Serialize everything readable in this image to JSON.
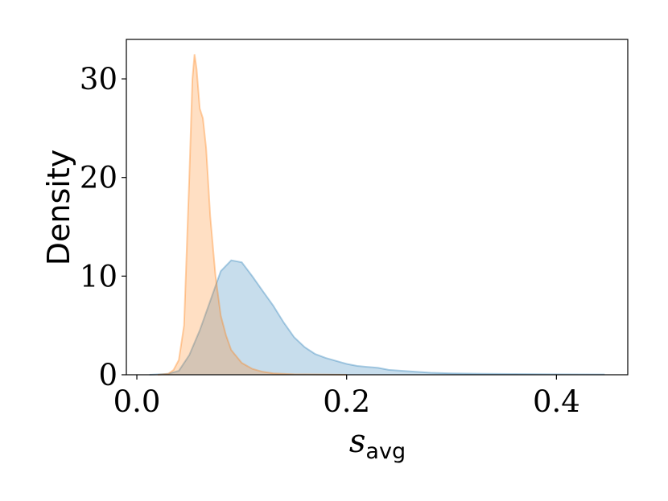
{
  "chart_data": {
    "type": "area",
    "xlabel": "s",
    "xlabel_subscript": "avg",
    "ylabel": "Density",
    "xlim": [
      -0.01,
      0.468
    ],
    "ylim": [
      0,
      34
    ],
    "grid": false,
    "x_ticks": [
      {
        "value": 0.0,
        "label": "0.0"
      },
      {
        "value": 0.2,
        "label": "0.2"
      },
      {
        "value": 0.4,
        "label": "0.4"
      }
    ],
    "y_ticks": [
      {
        "value": 0,
        "label": "0"
      },
      {
        "value": 10,
        "label": "10"
      },
      {
        "value": 20,
        "label": "20"
      },
      {
        "value": 30,
        "label": "30"
      }
    ],
    "series": [
      {
        "color": "#1f77b4",
        "points": [
          [
            0.012,
            0.0
          ],
          [
            0.03,
            0.1
          ],
          [
            0.04,
            0.4
          ],
          [
            0.05,
            2.0
          ],
          [
            0.06,
            4.5
          ],
          [
            0.07,
            7.5
          ],
          [
            0.08,
            10.5
          ],
          [
            0.09,
            11.6
          ],
          [
            0.1,
            11.4
          ],
          [
            0.11,
            10.0
          ],
          [
            0.12,
            8.5
          ],
          [
            0.13,
            7.0
          ],
          [
            0.14,
            5.3
          ],
          [
            0.15,
            3.8
          ],
          [
            0.16,
            2.8
          ],
          [
            0.17,
            2.1
          ],
          [
            0.18,
            1.7
          ],
          [
            0.19,
            1.4
          ],
          [
            0.2,
            1.1
          ],
          [
            0.21,
            0.9
          ],
          [
            0.22,
            0.8
          ],
          [
            0.23,
            0.7
          ],
          [
            0.24,
            0.5
          ],
          [
            0.26,
            0.35
          ],
          [
            0.28,
            0.2
          ],
          [
            0.3,
            0.15
          ],
          [
            0.33,
            0.1
          ],
          [
            0.36,
            0.08
          ],
          [
            0.4,
            0.05
          ],
          [
            0.446,
            0.03
          ]
        ]
      },
      {
        "color": "#ff7f0e",
        "points": [
          [
            0.02,
            0.0
          ],
          [
            0.03,
            0.1
          ],
          [
            0.035,
            0.5
          ],
          [
            0.04,
            1.5
          ],
          [
            0.045,
            5.0
          ],
          [
            0.05,
            20.0
          ],
          [
            0.053,
            30.0
          ],
          [
            0.055,
            32.5
          ],
          [
            0.057,
            31.0
          ],
          [
            0.06,
            27.0
          ],
          [
            0.063,
            26.0
          ],
          [
            0.066,
            23.0
          ],
          [
            0.07,
            16.0
          ],
          [
            0.075,
            10.0
          ],
          [
            0.08,
            6.0
          ],
          [
            0.085,
            4.0
          ],
          [
            0.09,
            2.5
          ],
          [
            0.1,
            1.2
          ],
          [
            0.11,
            0.6
          ],
          [
            0.12,
            0.3
          ],
          [
            0.13,
            0.15
          ],
          [
            0.15,
            0.05
          ],
          [
            0.2,
            0.0
          ]
        ]
      }
    ]
  }
}
